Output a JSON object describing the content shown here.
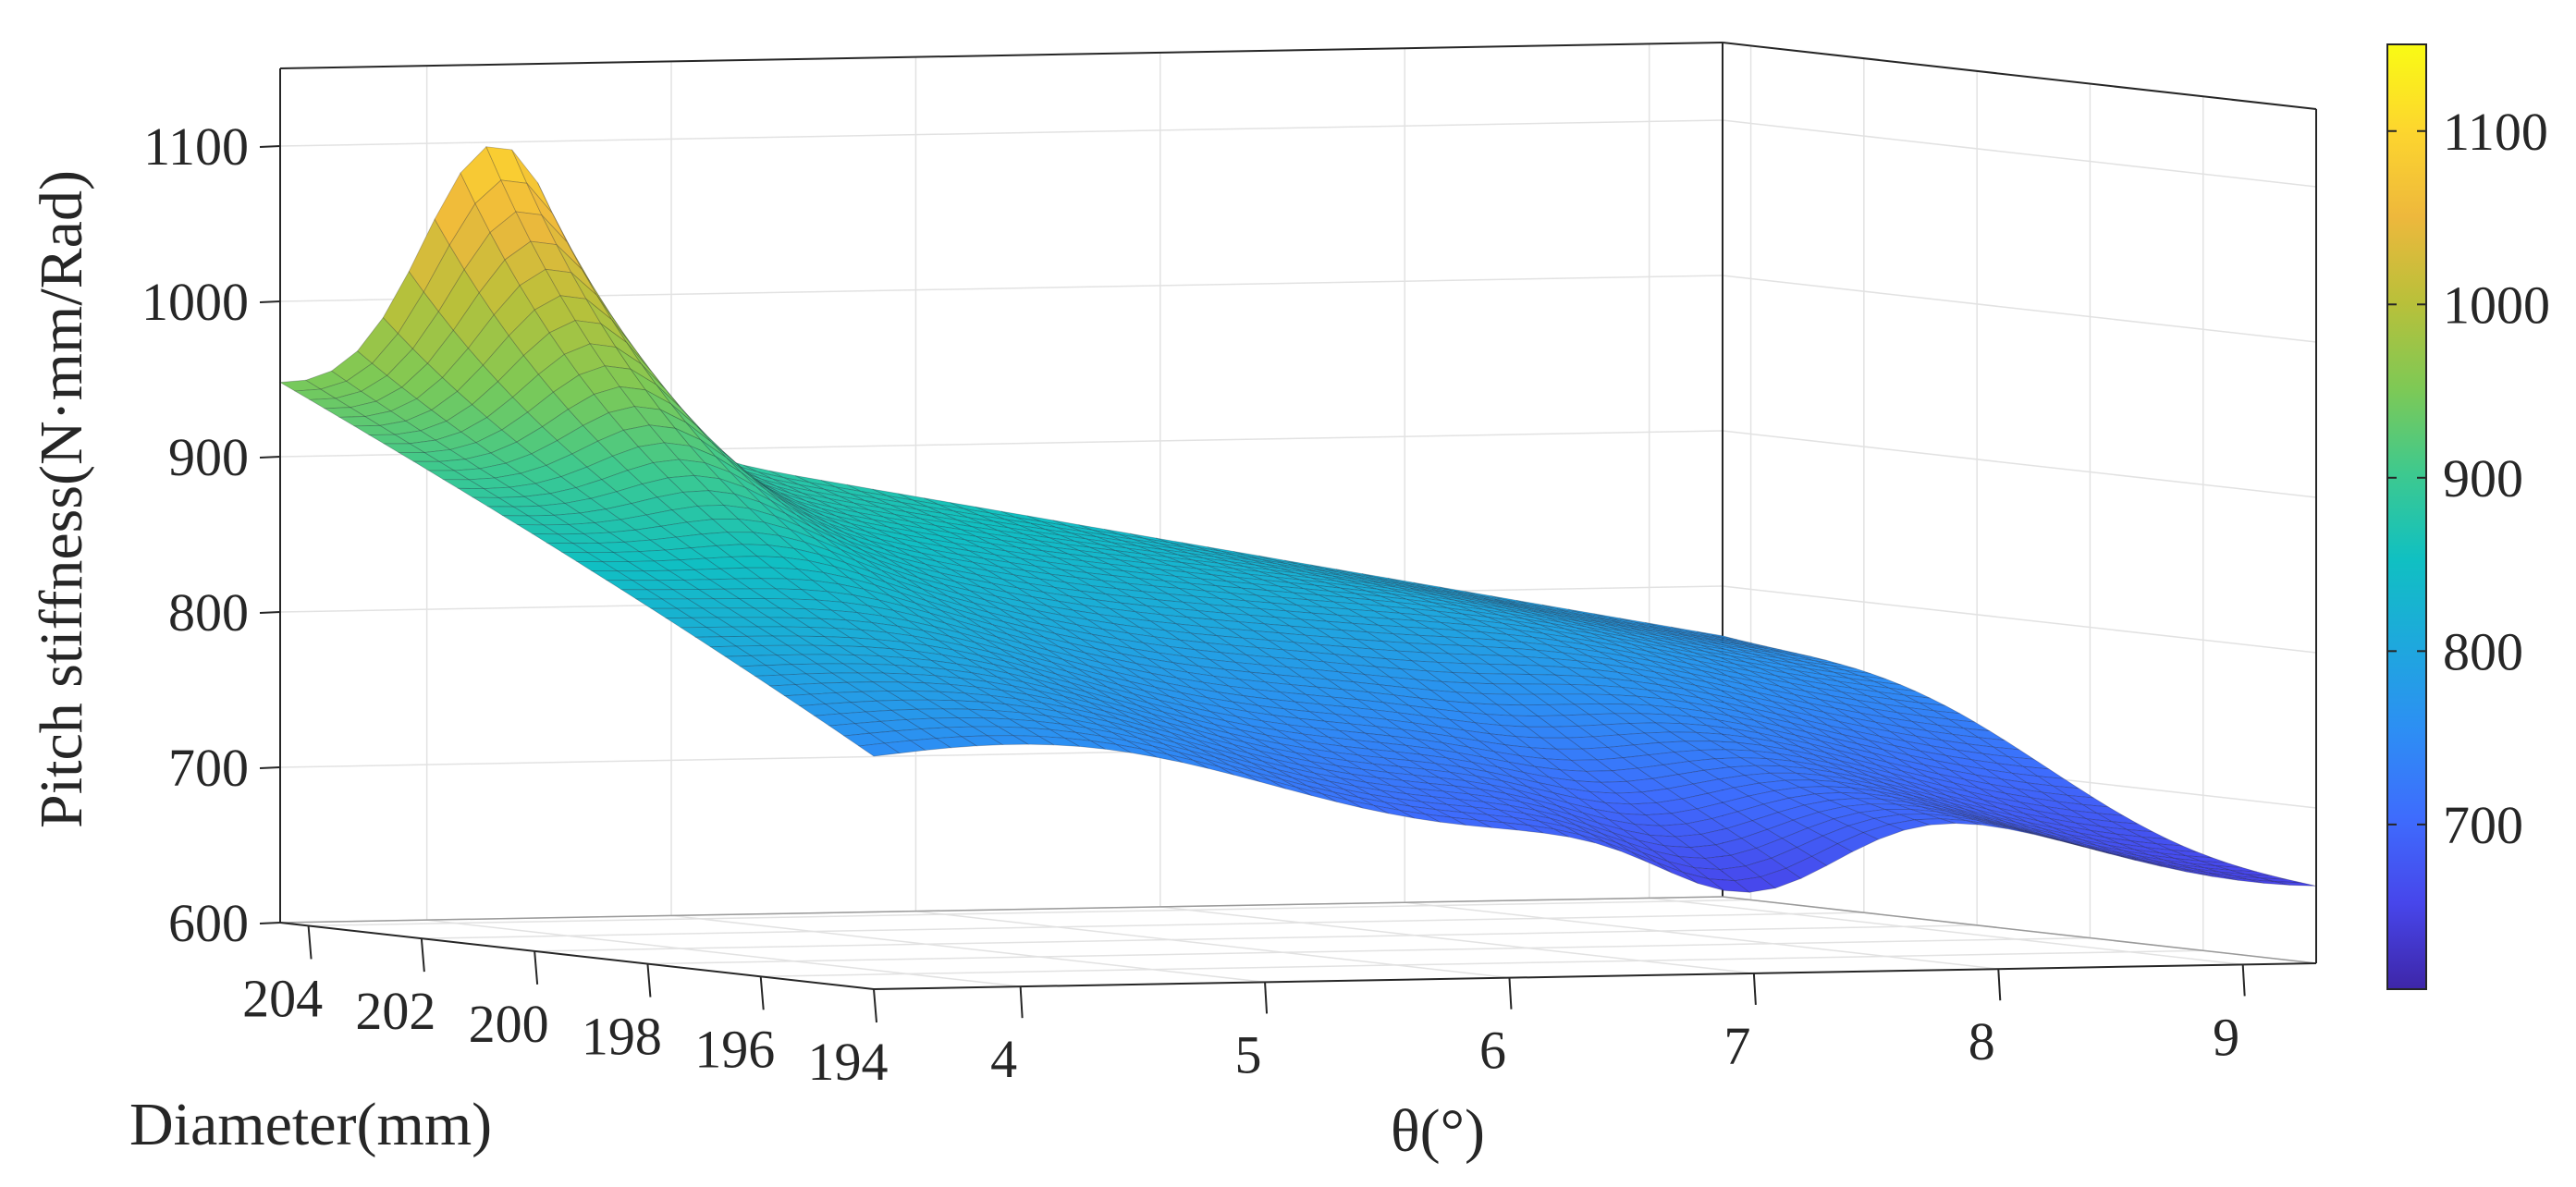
{
  "chart_data": {
    "type": "surface",
    "title": "",
    "zlabel": "Pitch stiffness(N·mm/Rad)",
    "xlabel": "θ(°)",
    "ylabel": "Diameter(mm)",
    "xlim": [
      3.4,
      9.3
    ],
    "ylim": [
      194,
      204.5
    ],
    "zlim": [
      600,
      1150
    ],
    "x_ticks": [
      4,
      5,
      6,
      7,
      8,
      9
    ],
    "y_ticks": [
      194,
      196,
      198,
      200,
      202,
      204
    ],
    "z_ticks": [
      600,
      700,
      800,
      900,
      1000,
      1100
    ],
    "x_tick_labels": [
      "4",
      "5",
      "6",
      "7",
      "8",
      "9"
    ],
    "y_tick_labels": [
      "194",
      "196",
      "198",
      "200",
      "202",
      "204"
    ],
    "z_tick_labels": [
      "600",
      "700",
      "800",
      "900",
      "1000",
      "1100"
    ],
    "colormap": "parula",
    "colorbar": {
      "range": [
        605,
        1150
      ],
      "ticks": [
        700,
        800,
        900,
        1000,
        1100
      ],
      "tick_labels": [
        "700",
        "800",
        "900",
        "1000",
        "1100"
      ],
      "colors": [
        "#3e26a8",
        "#4746eb",
        "#3e6cfd",
        "#2d8ef4",
        "#1ea8dd",
        "#10c0c2",
        "#3dc98f",
        "#7ec955",
        "#b9c03a",
        "#eeb83c",
        "#fdd62e",
        "#f9fb14"
      ]
    },
    "grid": true,
    "corner_values": [
      {
        "theta": 3.4,
        "diameter": 194,
        "stiffness": 750
      },
      {
        "theta": 3.4,
        "diameter": 204.5,
        "stiffness": 945
      },
      {
        "theta": 9.3,
        "diameter": 194,
        "stiffness": 665
      },
      {
        "theta": 9.3,
        "diameter": 204.5,
        "stiffness": 775
      }
    ],
    "peak": {
      "theta": 4.3,
      "diameter": 204.5,
      "stiffness": 1100
    },
    "minimum": {
      "theta": 7.0,
      "diameter": 194,
      "stiffness": 620
    }
  }
}
